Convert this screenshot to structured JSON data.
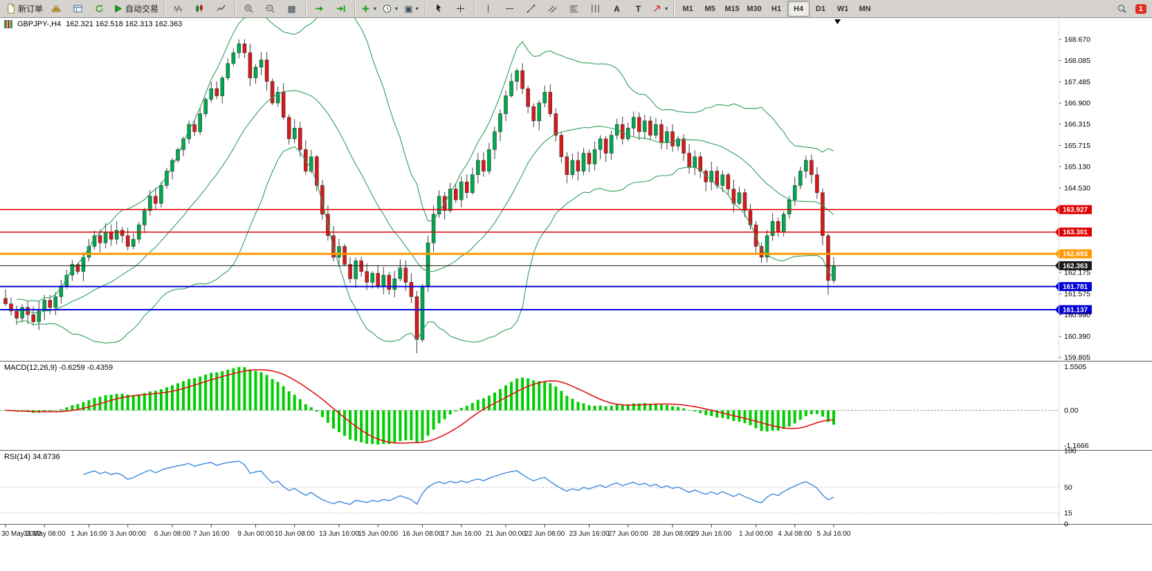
{
  "toolbar": {
    "new_order_label": "新订单",
    "autotrading_label": "自动交易",
    "timeframes": [
      "M1",
      "M5",
      "M15",
      "M30",
      "H1",
      "H4",
      "D1",
      "W1",
      "MN"
    ],
    "active_timeframe": "H4",
    "notification_count": "1"
  },
  "icons": {
    "dropdown": "▾",
    "tile": "▦",
    "template": "▣",
    "text_a": "A",
    "text_t": "T"
  },
  "chart": {
    "type": "candlestick_with_indicators",
    "title": {
      "symbol": "GBPJPY-,H4",
      "ohlc": "162.321 162.518 162.313 162.363"
    },
    "price_scale": {
      "min": 159.71,
      "max": 169.27,
      "labels": [
        "168.670",
        "168.085",
        "167.485",
        "166.900",
        "166.315",
        "165.715",
        "165.130",
        "164.530",
        "162.175",
        "161.575",
        "160.990",
        "160.390",
        "159.805"
      ]
    },
    "tags": [
      {
        "text": "163.927",
        "price": 163.927,
        "color": "#e00000",
        "width": 1.5
      },
      {
        "text": "163.301",
        "price": 163.301,
        "color": "#e00000",
        "width": 1.5
      },
      {
        "text": "162.693",
        "price": 162.693,
        "color": "#ff9900",
        "width": 3
      },
      {
        "text": "162.363",
        "price": 162.363,
        "color": "#1a1a1a",
        "width": 1
      },
      {
        "text": "161.781",
        "price": 161.781,
        "color": "#0000d8",
        "width": 2
      },
      {
        "text": "161.137",
        "price": 161.137,
        "color": "#0000d8",
        "width": 2
      }
    ],
    "time_labels": [
      {
        "text": "30 May 2022",
        "i": 0
      },
      {
        "text": "31 May 08:00",
        "i": 7
      },
      {
        "text": "1 Jun 16:00",
        "i": 15
      },
      {
        "text": "3 Jun 00:00",
        "i": 22
      },
      {
        "text": "6 Jun 08:00",
        "i": 30
      },
      {
        "text": "7 Jun 16:00",
        "i": 37
      },
      {
        "text": "9 Jun 00:00",
        "i": 45
      },
      {
        "text": "10 Jun 08:00",
        "i": 52
      },
      {
        "text": "13 Jun 16:00",
        "i": 60
      },
      {
        "text": "15 Jun 00:00",
        "i": 67
      },
      {
        "text": "16 Jun 08:00",
        "i": 75
      },
      {
        "text": "17 Jun 16:00",
        "i": 82
      },
      {
        "text": "21 Jun 00:00",
        "i": 90
      },
      {
        "text": "22 Jun 08:00",
        "i": 97
      },
      {
        "text": "23 Jun 16:00",
        "i": 105
      },
      {
        "text": "27 Jun 00:00",
        "i": 112
      },
      {
        "text": "28 Jun 08:00",
        "i": 120
      },
      {
        "text": "29 Jun 16:00",
        "i": 127
      },
      {
        "text": "1 Jul 00:00",
        "i": 135
      },
      {
        "text": "4 Jul 08:00",
        "i": 142
      },
      {
        "text": "5 Jul 16:00",
        "i": 149
      }
    ],
    "candles": {
      "first_open": 161.45,
      "up_color": "#00a84e",
      "down_color": "#d61a1a",
      "wick_color": "#3c3c3c",
      "outline_color": "#222222",
      "closes": [
        161.3,
        161.1,
        160.9,
        161.2,
        161.0,
        160.8,
        161.1,
        161.4,
        161.2,
        161.5,
        161.8,
        162.1,
        162.4,
        162.2,
        162.6,
        162.9,
        163.2,
        163.0,
        163.3,
        163.1,
        163.35,
        163.2,
        162.9,
        163.1,
        163.5,
        163.9,
        164.3,
        164.1,
        164.6,
        165.0,
        165.3,
        165.6,
        165.9,
        166.3,
        166.1,
        166.6,
        167.0,
        167.3,
        167.1,
        167.6,
        168.0,
        168.3,
        168.55,
        168.3,
        167.6,
        167.9,
        168.1,
        167.5,
        166.9,
        167.2,
        166.5,
        165.9,
        166.2,
        165.6,
        165.0,
        165.4,
        164.6,
        163.8,
        163.2,
        162.6,
        162.9,
        162.4,
        162.0,
        162.5,
        162.2,
        161.9,
        162.15,
        161.8,
        162.1,
        161.7,
        162.0,
        162.3,
        161.9,
        161.5,
        160.3,
        161.8,
        163.0,
        163.8,
        164.3,
        163.9,
        164.5,
        164.2,
        164.7,
        164.4,
        164.9,
        165.3,
        165.0,
        165.6,
        166.1,
        166.6,
        167.1,
        167.5,
        167.8,
        167.3,
        166.8,
        166.4,
        166.9,
        167.2,
        166.6,
        166.0,
        165.4,
        164.9,
        165.3,
        165.0,
        165.5,
        165.2,
        165.6,
        165.9,
        165.5,
        166.0,
        166.3,
        165.9,
        166.2,
        166.5,
        166.1,
        166.4,
        166.0,
        166.3,
        165.8,
        166.1,
        165.7,
        165.9,
        165.5,
        165.1,
        165.4,
        165.0,
        164.7,
        165.0,
        164.6,
        164.9,
        164.5,
        164.1,
        164.4,
        163.9,
        163.5,
        162.9,
        162.6,
        163.2,
        163.6,
        163.3,
        163.8,
        164.2,
        164.6,
        165.0,
        165.3,
        164.9,
        164.4,
        163.2,
        161.95,
        162.36
      ],
      "wick_overrides": {
        "42": {
          "high": 168.67
        },
        "74": {
          "low": 159.92
        },
        "148": {
          "low": 161.55
        }
      }
    },
    "bollinger": {
      "period": 20,
      "deviation": 2,
      "color": "#2e9e5b"
    },
    "macd": {
      "label": "MACD(12,26,9) -0.6259 -0.4359",
      "fast": 12,
      "slow": 26,
      "signal": 9,
      "scale_labels": [
        "1.5505",
        "0.00",
        "-1.1666"
      ],
      "hist_color": "#00ce00",
      "signal_color": "#e01010"
    },
    "rsi": {
      "label": "RSI(14) 34.8736",
      "period": 14,
      "color": "#3a87dd",
      "levels": [
        50,
        15
      ],
      "scale_labels": [
        {
          "text": "100",
          "v": 100
        },
        {
          "text": "50",
          "v": 50
        },
        {
          "text": "15",
          "v": 15
        },
        {
          "text": "0",
          "v": 0
        }
      ]
    }
  }
}
